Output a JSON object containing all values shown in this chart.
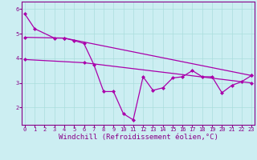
{
  "line1_x": [
    0,
    1,
    3,
    4,
    5,
    6,
    7,
    8,
    9,
    10,
    11,
    12,
    13,
    14,
    15,
    16,
    17,
    18,
    19,
    20,
    21,
    22,
    23
  ],
  "line1_y": [
    5.8,
    5.2,
    4.82,
    4.82,
    4.72,
    4.6,
    3.75,
    2.65,
    2.65,
    1.75,
    1.5,
    3.25,
    2.7,
    2.8,
    3.2,
    3.25,
    3.5,
    3.25,
    3.25,
    2.6,
    2.9,
    3.05,
    3.3
  ],
  "line2_x": [
    0,
    4,
    23
  ],
  "line2_y": [
    4.85,
    4.82,
    3.3
  ],
  "line3_x": [
    0,
    6,
    23
  ],
  "line3_y": [
    3.95,
    3.82,
    3.0
  ],
  "line_color": "#aa00aa",
  "marker": "D",
  "markersize": 2.0,
  "linewidth": 0.9,
  "xlabel": "Windchill (Refroidissement éolien,°C)",
  "xlabel_fontsize": 6.5,
  "ylabel_ticks": [
    2,
    3,
    4,
    5,
    6
  ],
  "xticks": [
    0,
    1,
    2,
    3,
    4,
    5,
    6,
    7,
    8,
    9,
    10,
    11,
    12,
    13,
    14,
    15,
    16,
    17,
    18,
    19,
    20,
    21,
    22,
    23
  ],
  "xlim": [
    -0.3,
    23.3
  ],
  "ylim": [
    1.3,
    6.3
  ],
  "bg_color": "#cceef2",
  "grid_color": "#aadddd",
  "tick_fontsize": 5.0,
  "spine_color": "#880088"
}
